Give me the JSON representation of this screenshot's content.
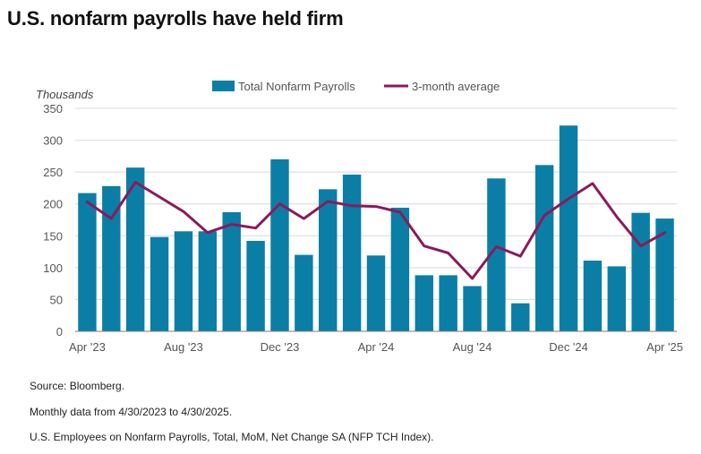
{
  "title": "U.S. nonfarm payrolls have held firm",
  "notes": {
    "source": "Source: Bloomberg.",
    "range": "Monthly data from 4/30/2023 to 4/30/2025.",
    "series_desc": "U.S. Employees on Nonfarm Payrolls, Total, MoM, Net Change SA (NFP TCH Index)."
  },
  "colors": {
    "bar": "#0b7ea6",
    "line": "#8a1a5c",
    "grid": "#d9d9d9",
    "axis": "#7f7f7f"
  },
  "chart_data": {
    "type": "bar",
    "y_unit_label": "Thousands",
    "ylim": [
      0,
      350
    ],
    "yticks": [
      0,
      50,
      100,
      150,
      200,
      250,
      300,
      350
    ],
    "grid": true,
    "legend_position": "top",
    "categories": [
      "Apr '23",
      "May '23",
      "Jun '23",
      "Jul '23",
      "Aug '23",
      "Sep '23",
      "Oct '23",
      "Nov '23",
      "Dec '23",
      "Jan '24",
      "Feb '24",
      "Mar '24",
      "Apr '24",
      "May '24",
      "Jun '24",
      "Jul '24",
      "Aug '24",
      "Sep '24",
      "Oct '24",
      "Nov '24",
      "Dec '24",
      "Jan '25",
      "Feb '25",
      "Mar '25",
      "Apr '25"
    ],
    "x_tick_labels": [
      {
        "index": 0,
        "label": "Apr '23"
      },
      {
        "index": 4,
        "label": "Aug '23"
      },
      {
        "index": 8,
        "label": "Dec '23"
      },
      {
        "index": 12,
        "label": "Apr '24"
      },
      {
        "index": 16,
        "label": "Aug '24"
      },
      {
        "index": 20,
        "label": "Dec '24"
      },
      {
        "index": 24,
        "label": "Apr '25"
      }
    ],
    "series": [
      {
        "name": "Total Nonfarm Payrolls",
        "type": "bar",
        "values": [
          217,
          228,
          257,
          148,
          157,
          157,
          187,
          142,
          270,
          120,
          223,
          246,
          119,
          194,
          88,
          88,
          71,
          240,
          44,
          261,
          323,
          111,
          102,
          186,
          177
        ]
      },
      {
        "name": "3-month average",
        "type": "line",
        "values": [
          203,
          177,
          234,
          211,
          188,
          155,
          168,
          162,
          200,
          177,
          204,
          197,
          196,
          187,
          134,
          123,
          83,
          133,
          118,
          182,
          208,
          232,
          180,
          134,
          155
        ]
      }
    ]
  }
}
